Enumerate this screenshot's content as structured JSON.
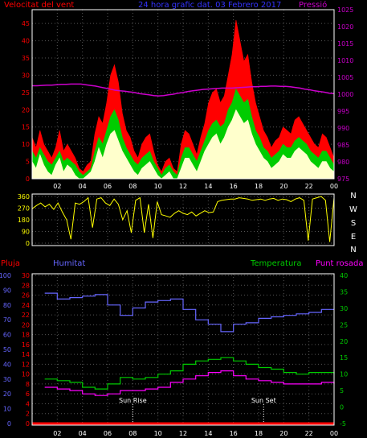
{
  "chart_data": [
    {
      "type": "line",
      "panel": "wind-pressure",
      "title": "24 hora grafic dat. 03 Febrero 2017",
      "left_label": "Velocitat del vent",
      "right_label": "Pressió",
      "x_ticks": [
        "02",
        "04",
        "06",
        "08",
        "10",
        "12",
        "14",
        "16",
        "18",
        "20",
        "22",
        "00"
      ],
      "y_left_ticks": [
        0,
        5,
        10,
        15,
        20,
        25,
        30,
        35,
        40,
        45
      ],
      "y_left_range": [
        0,
        49
      ],
      "y_right_ticks": [
        975,
        980,
        985,
        990,
        995,
        1000,
        1005,
        1010,
        1015,
        1020,
        1025
      ],
      "y_right_range": [
        975,
        1025
      ],
      "colors": {
        "gust": "#ff0000",
        "average": "#00cc00",
        "speed": "#ffffcc",
        "pressure": "#cc00cc",
        "axis_left": "#ff0000",
        "axis_right": "#cc00cc"
      },
      "series": [
        {
          "name": "gust",
          "values": [
            12,
            9,
            14,
            10,
            8,
            6,
            9,
            14,
            8,
            10,
            8,
            6,
            3,
            2,
            4,
            5,
            13,
            18,
            16,
            22,
            30,
            33,
            28,
            19,
            14,
            12,
            8,
            6,
            10,
            12,
            13,
            8,
            4,
            2,
            5,
            6,
            3,
            2,
            10,
            14,
            13,
            10,
            7,
            12,
            16,
            22,
            25,
            26,
            22,
            24,
            30,
            36,
            46,
            40,
            34,
            36,
            28,
            22,
            18,
            14,
            12,
            9,
            11,
            12,
            15,
            14,
            13,
            17,
            18,
            16,
            14,
            12,
            10,
            9,
            13,
            12,
            9,
            6
          ]
        },
        {
          "name": "average",
          "values": [
            8,
            6,
            9,
            7,
            5,
            4,
            6,
            8,
            5,
            6,
            5,
            4,
            2,
            1,
            2,
            3,
            8,
            12,
            10,
            14,
            18,
            20,
            17,
            12,
            9,
            7,
            5,
            4,
            6,
            7,
            8,
            5,
            3,
            1,
            3,
            4,
            2,
            1,
            6,
            9,
            9,
            7,
            5,
            8,
            11,
            14,
            16,
            17,
            15,
            16,
            20,
            22,
            26,
            24,
            22,
            23,
            18,
            14,
            12,
            9,
            8,
            6,
            7,
            8,
            10,
            9,
            9,
            11,
            12,
            11,
            10,
            8,
            7,
            6,
            8,
            8,
            6,
            4
          ]
        },
        {
          "name": "speed",
          "values": [
            5,
            3,
            7,
            4,
            2,
            1,
            4,
            6,
            2,
            4,
            3,
            1,
            0,
            0,
            1,
            2,
            5,
            9,
            6,
            10,
            13,
            14,
            11,
            8,
            6,
            4,
            2,
            1,
            3,
            4,
            5,
            3,
            1,
            0,
            1,
            2,
            0,
            0,
            3,
            6,
            6,
            4,
            2,
            5,
            8,
            10,
            12,
            13,
            10,
            12,
            15,
            17,
            20,
            18,
            16,
            17,
            13,
            10,
            8,
            6,
            5,
            3,
            4,
            5,
            7,
            6,
            6,
            8,
            9,
            8,
            7,
            5,
            4,
            3,
            5,
            5,
            3,
            2
          ]
        },
        {
          "name": "pressure",
          "values": [
            1002.5,
            1002.5,
            1002.6,
            1002.7,
            1002.7,
            1002.8,
            1002.9,
            1002.9,
            1003.0,
            1003.0,
            1003.0,
            1002.8,
            1002.6,
            1002.4,
            1002.1,
            1001.8,
            1001.5,
            1001.2,
            1001.0,
            1000.9,
            1000.7,
            1000.5,
            1000.2,
            1000.0,
            999.8,
            999.6,
            999.5,
            999.6,
            999.8,
            1000.0,
            1000.3,
            1000.5,
            1000.8,
            1001.0,
            1001.2,
            1001.4,
            1001.5,
            1001.6,
            1001.7,
            1001.8,
            1001.8,
            1001.8,
            1001.9,
            1002.0,
            1002.1,
            1002.2,
            1002.2,
            1002.3,
            1002.3,
            1002.4,
            1002.4,
            1002.3,
            1002.3,
            1002.2,
            1002.0,
            1001.8,
            1001.5,
            1001.3,
            1001.0,
            1000.8,
            1000.6,
            1000.3,
            1000.2
          ]
        }
      ]
    },
    {
      "type": "line",
      "panel": "wind-direction",
      "y_ticks": [
        0,
        90,
        180,
        270,
        360
      ],
      "y_range": [
        0,
        360
      ],
      "right_labels": [
        "N",
        "W",
        "S",
        "E",
        "N"
      ],
      "x_ticks": [
        "02",
        "04",
        "06",
        "08",
        "10",
        "12",
        "14",
        "16",
        "18",
        "20",
        "22",
        "00"
      ],
      "colors": {
        "direction": "#ffff00",
        "axis": "#ffff00",
        "compass": "#ffffff"
      },
      "series": [
        {
          "name": "direction",
          "values": [
            265,
            290,
            310,
            280,
            300,
            260,
            310,
            240,
            180,
            30,
            310,
            300,
            320,
            350,
            120,
            340,
            350,
            310,
            290,
            340,
            300,
            180,
            250,
            80,
            330,
            350,
            80,
            300,
            40,
            320,
            220,
            210,
            200,
            230,
            250,
            230,
            220,
            240,
            210,
            230,
            250,
            235,
            240,
            320,
            330,
            335,
            340,
            340,
            350,
            345,
            340,
            330,
            335,
            340,
            330,
            340,
            345,
            330,
            340,
            335,
            320,
            340,
            350,
            330,
            20,
            340,
            350,
            360,
            330,
            10,
            350
          ]
        }
      ]
    },
    {
      "type": "line",
      "panel": "temp-humidity",
      "labels": {
        "rain": "Pluja",
        "humidity": "Humitat",
        "temperature": "Temperatura",
        "dew_point": "Punt rosada"
      },
      "x_ticks": [
        "02",
        "04",
        "06",
        "08",
        "10",
        "12",
        "14",
        "16",
        "18",
        "20",
        "22",
        "00"
      ],
      "y_humidity_ticks": [
        0,
        10,
        20,
        30,
        40,
        50,
        60,
        70,
        80,
        90,
        100
      ],
      "y_rain_ticks": [
        0,
        2,
        4,
        6,
        8,
        10,
        12,
        14,
        16,
        18,
        20,
        22,
        24,
        26,
        28,
        30
      ],
      "y_temp_ticks": [
        -5,
        0,
        5,
        10,
        15,
        20,
        25,
        30,
        35,
        40
      ],
      "y_temp_range": [
        -5,
        40
      ],
      "annotations": [
        {
          "label": "Sun Rise",
          "x": 8.0
        },
        {
          "label": "Sun Set",
          "x": 18.4
        }
      ],
      "colors": {
        "rain": "#ff0000",
        "humidity": "#6666ff",
        "temperature": "#00cc00",
        "dew_point": "#ff00ff",
        "axis_temp": "#00cc00"
      },
      "series": [
        {
          "name": "humidity",
          "x": [
            1,
            2,
            3,
            4,
            5,
            6,
            7,
            8,
            9,
            10,
            11,
            12,
            13,
            14,
            15,
            16,
            17,
            18,
            19,
            20,
            21,
            22,
            23,
            24
          ],
          "values": [
            88,
            84,
            85,
            86,
            87,
            80,
            73,
            78,
            82,
            83,
            84,
            77,
            70,
            67,
            62,
            67,
            68,
            71,
            72,
            73,
            74,
            75,
            77,
            77
          ]
        },
        {
          "name": "temperature",
          "x": [
            1,
            2,
            3,
            4,
            5,
            6,
            7,
            8,
            9,
            10,
            11,
            12,
            13,
            14,
            15,
            16,
            17,
            18,
            19,
            20,
            21,
            22,
            23,
            24
          ],
          "values": [
            8.5,
            8,
            7.5,
            6,
            5.5,
            7,
            9,
            8.5,
            9,
            10,
            11,
            13,
            14,
            14.5,
            15,
            14,
            13,
            12,
            11.5,
            10.5,
            10,
            10.5,
            10.5,
            10
          ]
        },
        {
          "name": "dew_point",
          "x": [
            1,
            2,
            3,
            4,
            5,
            6,
            7,
            8,
            9,
            10,
            11,
            12,
            13,
            14,
            15,
            16,
            17,
            18,
            19,
            20,
            21,
            22,
            23,
            24
          ],
          "values": [
            6,
            5.5,
            5,
            4,
            3.5,
            4,
            5,
            5,
            5.5,
            6,
            7.5,
            8.5,
            9.5,
            10.5,
            11,
            9.5,
            8.5,
            8,
            7.5,
            7,
            7,
            7,
            7.5,
            7
          ]
        },
        {
          "name": "rain",
          "x": [
            0,
            24
          ],
          "values": [
            0,
            0
          ]
        }
      ]
    }
  ]
}
